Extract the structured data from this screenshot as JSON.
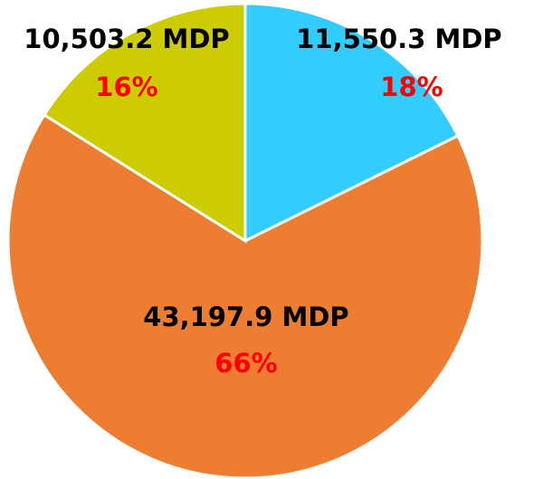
{
  "chart_data": {
    "type": "pie",
    "categories": [
      null,
      null,
      null
    ],
    "values": [
      11550.3,
      43197.9,
      10503.2
    ],
    "value_labels": [
      "11,550.3 MDP",
      "43,197.9 MDP",
      "10,503.2 MDP"
    ],
    "percent_labels": [
      "18%",
      "66%",
      "16%"
    ],
    "colors": [
      "#33ccff",
      "#ed7d31",
      "#cccc00"
    ]
  }
}
